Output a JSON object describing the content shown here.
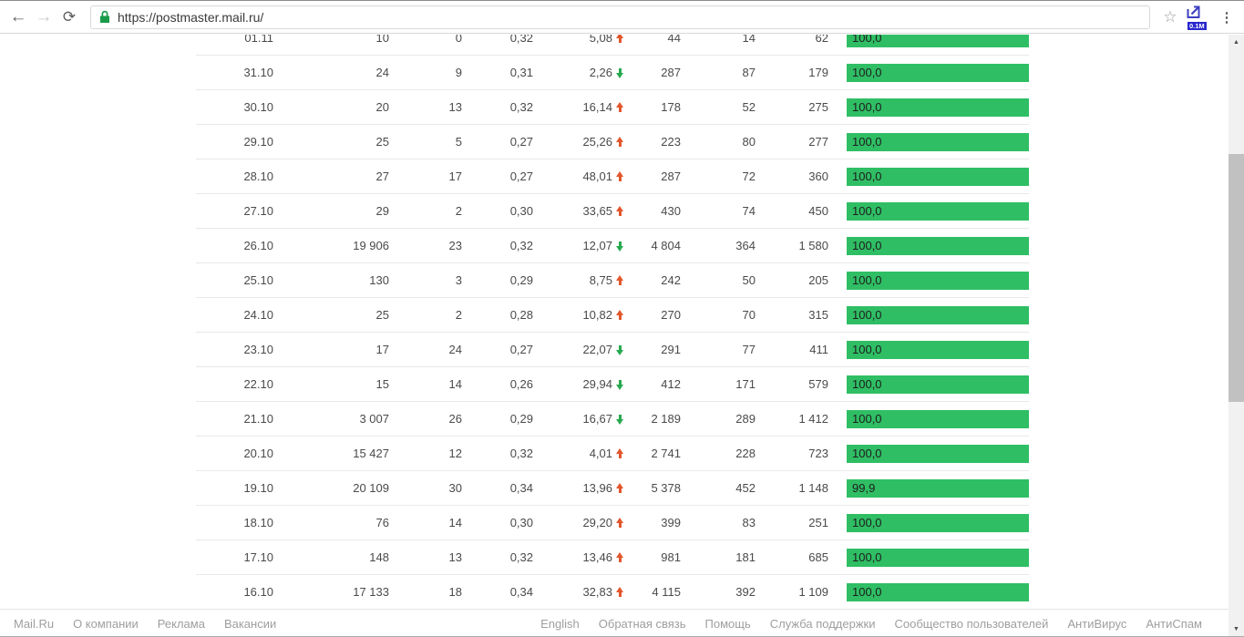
{
  "browser": {
    "back_label": "←",
    "forward_label": "→",
    "reload_label": "⟳",
    "url": "https://postmaster.mail.ru/",
    "star_label": "☆",
    "menu_label": "⋮",
    "extension_badge": "0.1M"
  },
  "colors": {
    "bar_green": "#2fbe64",
    "up_red": "#e2562c",
    "down_green": "#28a94f",
    "lock_green": "#1a9b49",
    "extension_blue": "#3f3fc2"
  },
  "chart_data": {
    "type": "table",
    "note": "postmaster.mail.ru daily mail statistics; rightmost column is delivered-rate bar (%)",
    "columns": [
      "date",
      "v1",
      "v2",
      "v3",
      "pct_change",
      "v4",
      "v5",
      "v6",
      "bar"
    ],
    "rows_as_text": "see table.rows"
  },
  "table": {
    "rows": [
      {
        "date": "01.11",
        "v1": "10",
        "v2": "0",
        "v3": "0,32",
        "pct": "5,08",
        "dir": "up",
        "v4": "44",
        "v5": "14",
        "v6": "62",
        "bar": "100,0",
        "bar_pct": 100
      },
      {
        "date": "31.10",
        "v1": "24",
        "v2": "9",
        "v3": "0,31",
        "pct": "2,26",
        "dir": "down",
        "v4": "287",
        "v5": "87",
        "v6": "179",
        "bar": "100,0",
        "bar_pct": 100
      },
      {
        "date": "30.10",
        "v1": "20",
        "v2": "13",
        "v3": "0,32",
        "pct": "16,14",
        "dir": "up",
        "v4": "178",
        "v5": "52",
        "v6": "275",
        "bar": "100,0",
        "bar_pct": 100
      },
      {
        "date": "29.10",
        "v1": "25",
        "v2": "5",
        "v3": "0,27",
        "pct": "25,26",
        "dir": "up",
        "v4": "223",
        "v5": "80",
        "v6": "277",
        "bar": "100,0",
        "bar_pct": 100
      },
      {
        "date": "28.10",
        "v1": "27",
        "v2": "17",
        "v3": "0,27",
        "pct": "48,01",
        "dir": "up",
        "v4": "287",
        "v5": "72",
        "v6": "360",
        "bar": "100,0",
        "bar_pct": 100
      },
      {
        "date": "27.10",
        "v1": "29",
        "v2": "2",
        "v3": "0,30",
        "pct": "33,65",
        "dir": "up",
        "v4": "430",
        "v5": "74",
        "v6": "450",
        "bar": "100,0",
        "bar_pct": 100
      },
      {
        "date": "26.10",
        "v1": "19 906",
        "v2": "23",
        "v3": "0,32",
        "pct": "12,07",
        "dir": "down",
        "v4": "4 804",
        "v5": "364",
        "v6": "1 580",
        "bar": "100,0",
        "bar_pct": 100
      },
      {
        "date": "25.10",
        "v1": "130",
        "v2": "3",
        "v3": "0,29",
        "pct": "8,75",
        "dir": "up",
        "v4": "242",
        "v5": "50",
        "v6": "205",
        "bar": "100,0",
        "bar_pct": 100
      },
      {
        "date": "24.10",
        "v1": "25",
        "v2": "2",
        "v3": "0,28",
        "pct": "10,82",
        "dir": "up",
        "v4": "270",
        "v5": "70",
        "v6": "315",
        "bar": "100,0",
        "bar_pct": 100
      },
      {
        "date": "23.10",
        "v1": "17",
        "v2": "24",
        "v3": "0,27",
        "pct": "22,07",
        "dir": "down",
        "v4": "291",
        "v5": "77",
        "v6": "411",
        "bar": "100,0",
        "bar_pct": 100
      },
      {
        "date": "22.10",
        "v1": "15",
        "v2": "14",
        "v3": "0,26",
        "pct": "29,94",
        "dir": "down",
        "v4": "412",
        "v5": "171",
        "v6": "579",
        "bar": "100,0",
        "bar_pct": 100
      },
      {
        "date": "21.10",
        "v1": "3 007",
        "v2": "26",
        "v3": "0,29",
        "pct": "16,67",
        "dir": "down",
        "v4": "2 189",
        "v5": "289",
        "v6": "1 412",
        "bar": "100,0",
        "bar_pct": 100
      },
      {
        "date": "20.10",
        "v1": "15 427",
        "v2": "12",
        "v3": "0,32",
        "pct": "4,01",
        "dir": "up",
        "v4": "2 741",
        "v5": "228",
        "v6": "723",
        "bar": "100,0",
        "bar_pct": 100
      },
      {
        "date": "19.10",
        "v1": "20 109",
        "v2": "30",
        "v3": "0,34",
        "pct": "13,96",
        "dir": "up",
        "v4": "5 378",
        "v5": "452",
        "v6": "1 148",
        "bar": "99,9",
        "bar_pct": 99.9
      },
      {
        "date": "18.10",
        "v1": "76",
        "v2": "14",
        "v3": "0,30",
        "pct": "29,20",
        "dir": "up",
        "v4": "399",
        "v5": "83",
        "v6": "251",
        "bar": "100,0",
        "bar_pct": 100
      },
      {
        "date": "17.10",
        "v1": "148",
        "v2": "13",
        "v3": "0,32",
        "pct": "13,46",
        "dir": "up",
        "v4": "981",
        "v5": "181",
        "v6": "685",
        "bar": "100,0",
        "bar_pct": 100
      },
      {
        "date": "16.10",
        "v1": "17 133",
        "v2": "18",
        "v3": "0,34",
        "pct": "32,83",
        "dir": "up",
        "v4": "4 115",
        "v5": "392",
        "v6": "1 109",
        "bar": "100,0",
        "bar_pct": 100
      }
    ]
  },
  "footer": {
    "left": [
      "Mail.Ru",
      "О компании",
      "Реклама",
      "Вакансии"
    ],
    "right": [
      "English",
      "Обратная связь",
      "Помощь",
      "Служба поддержки",
      "Сообщество пользователей",
      "АнтиВирус",
      "АнтиСпам"
    ]
  },
  "scrollbar": {
    "up_glyph": "▲",
    "down_glyph": "▼"
  }
}
